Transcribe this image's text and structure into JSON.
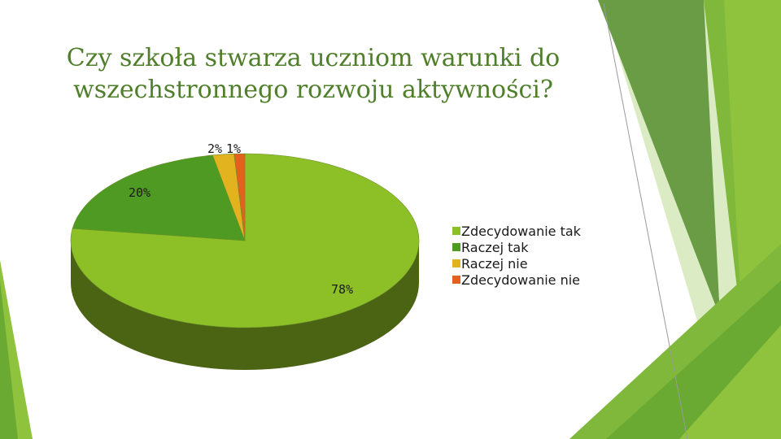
{
  "title_lines": [
    "Czy szkoła stwarza uczniom warunki do",
    "wszechstronnego rozwoju aktywności?"
  ],
  "colors": {
    "accent_dark": "#4b7d1e",
    "accent_mid": "#6aaa33",
    "accent_light": "#8fc33d",
    "accent_pale": "#d5e8b8",
    "title": "#4f7f2a"
  },
  "chart_data": {
    "type": "pie",
    "title": "Czy szkoła stwarza uczniom warunki do wszechstronnego rozwoju aktywności?",
    "categories": [
      "Zdecydowanie tak",
      "Raczej tak",
      "Raczej nie",
      "Zdecydowanie nie"
    ],
    "values": [
      78,
      20,
      2,
      1
    ],
    "labels": [
      "78%",
      "20%",
      "2%",
      "1%"
    ],
    "colors": [
      "#8dc027",
      "#4e9a23",
      "#e2b31f",
      "#e2611d"
    ],
    "side_colors": [
      "#4a6413",
      "#2c5a12",
      "#8a6b10",
      "#8a3a10"
    ],
    "legend_position": "right",
    "three_d": true
  }
}
